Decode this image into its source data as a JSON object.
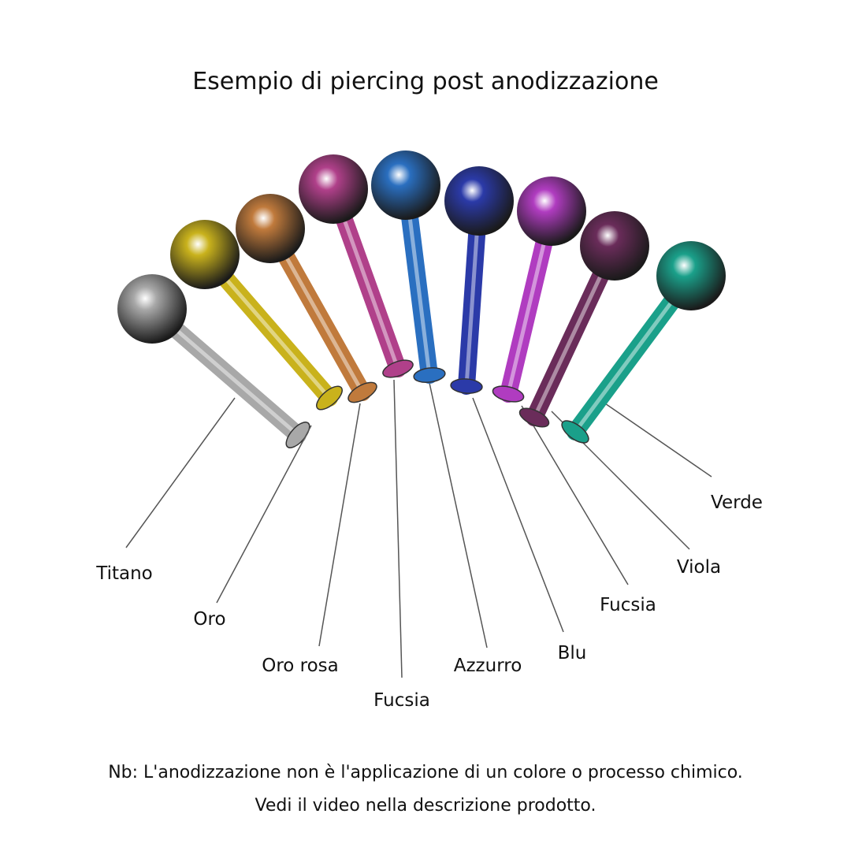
{
  "title": "Esempio di piercing post anodizzazione",
  "piercings": [
    {
      "label": "Titano",
      "color": "#a8a8a8"
    },
    {
      "label": "Oro",
      "color": "#c9b21c"
    },
    {
      "label": "Oro rosa",
      "color": "#c07a3c"
    },
    {
      "label": "Fucsia",
      "color": "#b0408a"
    },
    {
      "label": "Azzurro",
      "color": "#2a6fc0"
    },
    {
      "label": "Blu",
      "color": "#2b3aa8"
    },
    {
      "label": "Fucsia",
      "color": "#b03cc0"
    },
    {
      "label": "Viola",
      "color": "#6a2c5a"
    },
    {
      "label": "Verde",
      "color": "#1aa08a"
    }
  ],
  "note": {
    "line1": "Nb: L'anodizzazione non è l'applicazione di un colore o processo chimico.",
    "line2": "Vedi il video nella descrizione prodotto."
  }
}
